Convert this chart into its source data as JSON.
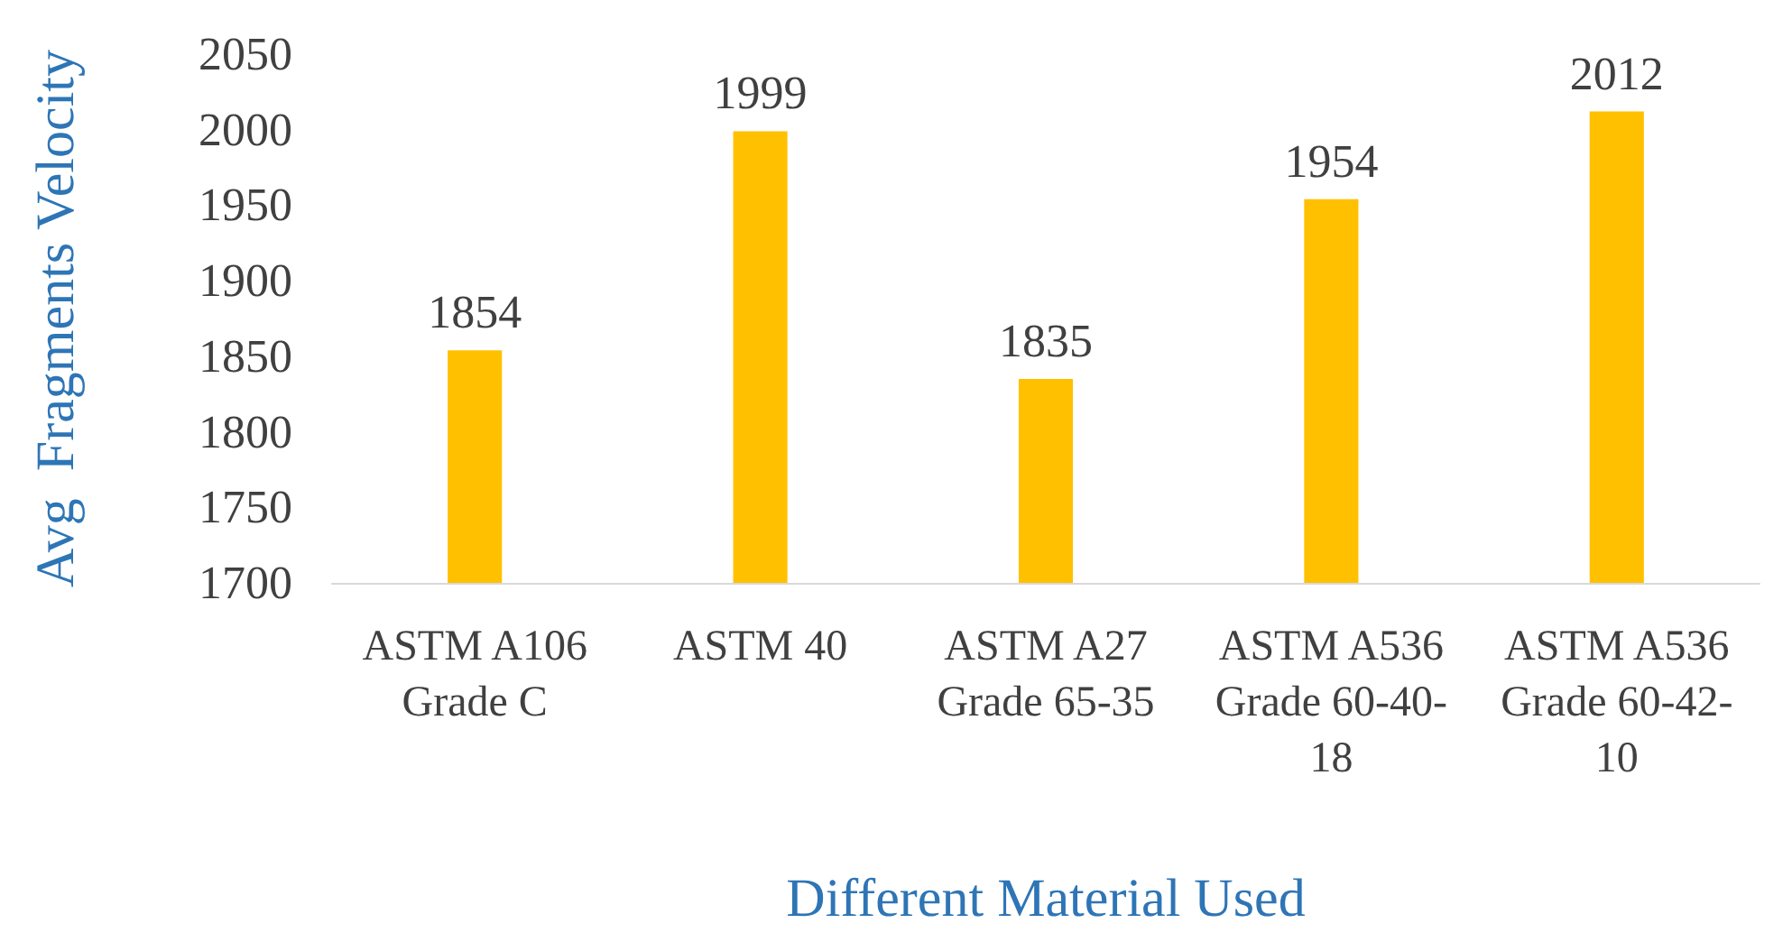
{
  "chart_data": {
    "type": "bar",
    "xlabel": "Different Material Used",
    "ylabel": "Avg  Fragments Velocity",
    "categories": [
      "ASTM A106\nGrade C",
      "ASTM 40",
      "ASTM A27\nGrade 65-35",
      "ASTM A536\nGrade 60-40-\n18",
      "ASTM A536\nGrade 60-42-\n10"
    ],
    "values": [
      1854,
      1999,
      1835,
      1954,
      2012
    ],
    "color": "#ffc000",
    "data_labels": true,
    "ylim": [
      1700,
      2050
    ],
    "yticks": [
      1700,
      1750,
      1800,
      1850,
      1900,
      1950,
      2000,
      2050
    ],
    "grid": false
  }
}
